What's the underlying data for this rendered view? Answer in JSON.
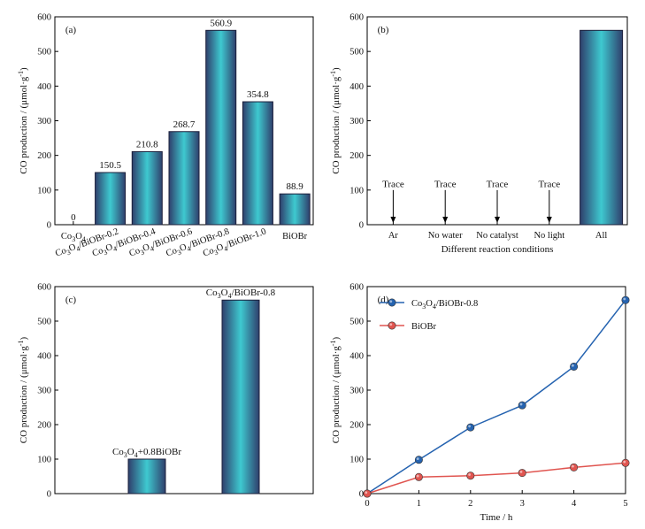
{
  "colors": {
    "bar_edge": "#1b1f3a",
    "bar_dark": "#2f3f6c",
    "bar_light": "#3ec9d0",
    "series_blue": "#2563b0",
    "series_red": "#e05550"
  },
  "chart_data": [
    {
      "panel": "(a)",
      "type": "bar",
      "ylabel": "CO production / (μmol·g⁻¹)",
      "xlabel": "",
      "ylim": [
        0,
        600
      ],
      "yticks": [
        0,
        100,
        200,
        300,
        400,
        500,
        600
      ],
      "categories": [
        "Co3O4",
        "Co3O4/BiOBr-0.2",
        "Co3O4/BiOBr-0.4",
        "Co3O4/BiOBr-0.6",
        "Co3O4/BiOBr-0.8",
        "Co3O4/BiOBr-1.0",
        "BiOBr"
      ],
      "values": [
        0,
        150.5,
        210.8,
        268.7,
        560.9,
        354.8,
        88.9
      ],
      "value_labels": [
        "0",
        "150.5",
        "210.8",
        "268.7",
        "560.9",
        "354.8",
        "88.9"
      ]
    },
    {
      "panel": "(b)",
      "type": "bar",
      "ylabel": "CO production / (μmol·g⁻¹)",
      "xlabel": "Different reaction conditions",
      "ylim": [
        0,
        600
      ],
      "yticks": [
        0,
        100,
        200,
        300,
        400,
        500,
        600
      ],
      "categories": [
        "Ar",
        "No water",
        "No catalyst",
        "No light",
        "All"
      ],
      "values": [
        0,
        0,
        0,
        0,
        560.9
      ],
      "annotations": [
        "Trace",
        "Trace",
        "Trace",
        "Trace",
        ""
      ]
    },
    {
      "panel": "(c)",
      "type": "bar",
      "ylabel": "CO production / (μmol·g⁻¹)",
      "xlabel": "",
      "ylim": [
        0,
        600
      ],
      "yticks": [
        0,
        100,
        200,
        300,
        400,
        500,
        600
      ],
      "categories": [
        "Co3O4+0.8BiOBr",
        "Co3O4/BiOBr-0.8"
      ],
      "values": [
        100,
        560.9
      ]
    },
    {
      "panel": "(d)",
      "type": "line",
      "ylabel": "CO production / (μmol·g⁻¹)",
      "xlabel": "Time / h",
      "xlim": [
        0,
        5
      ],
      "ylim": [
        0,
        600
      ],
      "xticks": [
        0,
        1,
        2,
        3,
        4,
        5
      ],
      "yticks": [
        0,
        100,
        200,
        300,
        400,
        500,
        600
      ],
      "legend_position": "top-left",
      "x": [
        0,
        1,
        2,
        3,
        4,
        5
      ],
      "series": [
        {
          "name": "Co3O4/BiOBr-0.8",
          "color": "#2563b0",
          "values": [
            0,
            98,
            192,
            256,
            368,
            561
          ]
        },
        {
          "name": "BiOBr",
          "color": "#e05550",
          "values": [
            0,
            48,
            52,
            60,
            76,
            89
          ]
        }
      ]
    }
  ]
}
